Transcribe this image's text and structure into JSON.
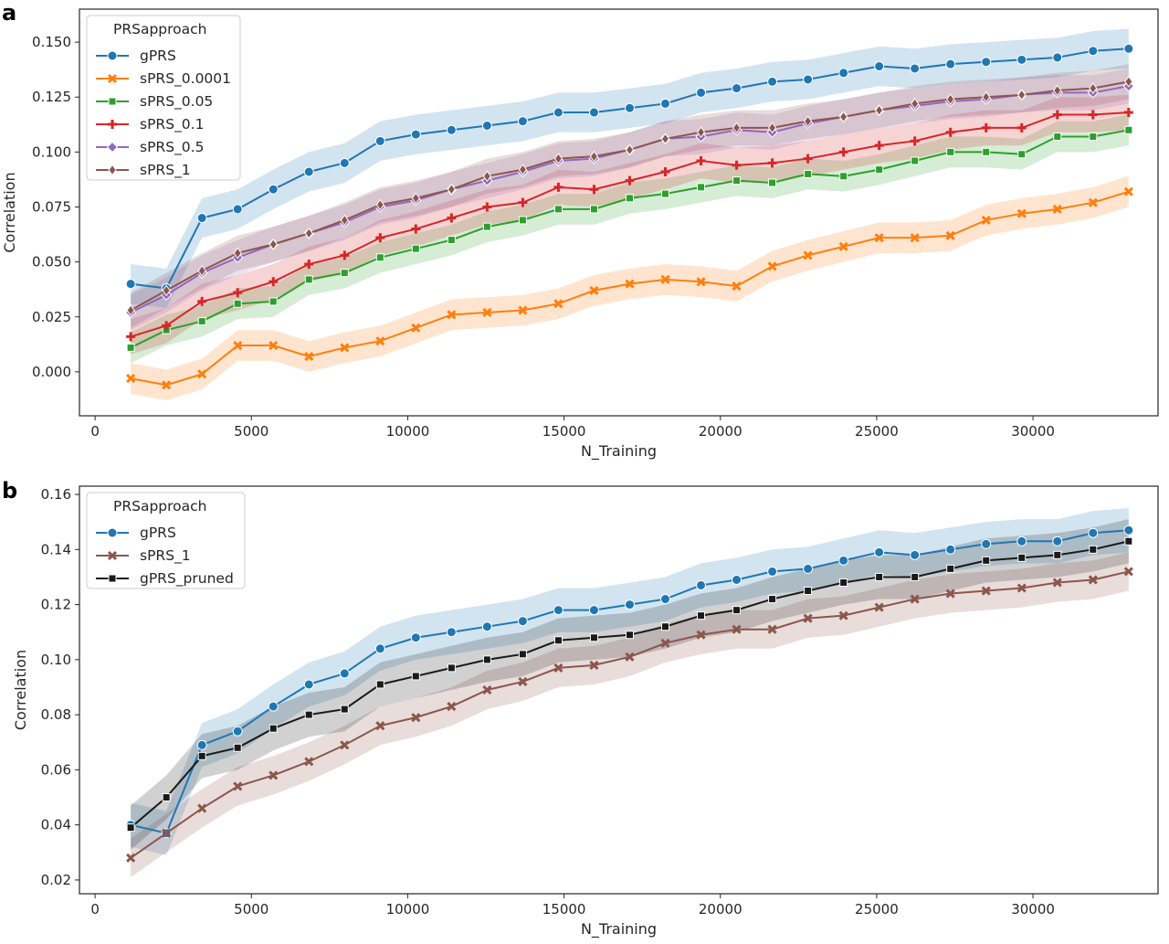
{
  "chart_data": [
    {
      "panel_label": "a",
      "type": "line",
      "xlabel": "N_Training",
      "ylabel": "Correlation",
      "xlim": [
        -500,
        34000
      ],
      "ylim": [
        -0.02,
        0.165
      ],
      "xticks": [
        0,
        5000,
        10000,
        15000,
        20000,
        25000,
        30000
      ],
      "xtick_labels": [
        "0",
        "5000",
        "10000",
        "15000",
        "20000",
        "25000",
        "30000"
      ],
      "yticks": [
        0.0,
        0.025,
        0.05,
        0.075,
        0.1,
        0.125,
        0.15
      ],
      "ytick_labels": [
        "0.000",
        "0.025",
        "0.050",
        "0.075",
        "0.100",
        "0.125",
        "0.150"
      ],
      "grid": false,
      "legend_title": "PRSapproach",
      "legend_position": "top-left",
      "x": [
        1140,
        2280,
        3420,
        4560,
        5700,
        6840,
        7980,
        9120,
        10260,
        11400,
        12540,
        13680,
        14820,
        15960,
        17100,
        18240,
        19380,
        20520,
        21660,
        22800,
        23940,
        25080,
        26220,
        27360,
        28500,
        29640,
        30780,
        31920,
        33060
      ],
      "series": [
        {
          "name": "gPRS",
          "color": "#1f77b4",
          "marker": "circle",
          "band": 0.009,
          "values": [
            0.04,
            0.038,
            0.07,
            0.074,
            0.083,
            0.091,
            0.095,
            0.105,
            0.108,
            0.11,
            0.112,
            0.114,
            0.118,
            0.118,
            0.12,
            0.122,
            0.127,
            0.129,
            0.132,
            0.133,
            0.136,
            0.139,
            0.138,
            0.14,
            0.141,
            0.142,
            0.143,
            0.146,
            0.147
          ]
        },
        {
          "name": "sPRS_0.0001",
          "color": "#ff7f0e",
          "marker": "x",
          "band": 0.007,
          "values": [
            -0.003,
            -0.006,
            -0.001,
            0.012,
            0.012,
            0.007,
            0.011,
            0.014,
            0.02,
            0.026,
            0.027,
            0.028,
            0.031,
            0.037,
            0.04,
            0.042,
            0.041,
            0.039,
            0.048,
            0.053,
            0.057,
            0.061,
            0.061,
            0.062,
            0.069,
            0.072,
            0.074,
            0.077,
            0.082
          ]
        },
        {
          "name": "sPRS_0.05",
          "color": "#2ca02c",
          "marker": "square",
          "band": 0.007,
          "values": [
            0.011,
            0.019,
            0.023,
            0.031,
            0.032,
            0.042,
            0.045,
            0.052,
            0.056,
            0.06,
            0.066,
            0.069,
            0.074,
            0.074,
            0.079,
            0.081,
            0.084,
            0.087,
            0.086,
            0.09,
            0.089,
            0.092,
            0.096,
            0.1,
            0.1,
            0.099,
            0.107,
            0.107,
            0.11
          ]
        },
        {
          "name": "sPRS_0.1",
          "color": "#d62728",
          "marker": "plus",
          "band": 0.008,
          "values": [
            0.016,
            0.021,
            0.032,
            0.036,
            0.041,
            0.049,
            0.053,
            0.061,
            0.065,
            0.07,
            0.075,
            0.077,
            0.084,
            0.083,
            0.087,
            0.091,
            0.096,
            0.094,
            0.095,
            0.097,
            0.1,
            0.103,
            0.105,
            0.109,
            0.111,
            0.111,
            0.117,
            0.117,
            0.118
          ]
        },
        {
          "name": "sPRS_0.5",
          "color": "#9467bd",
          "marker": "diamond",
          "band": 0.008,
          "values": [
            0.027,
            0.035,
            0.045,
            0.052,
            0.058,
            0.063,
            0.068,
            0.075,
            0.078,
            0.083,
            0.087,
            0.091,
            0.096,
            0.097,
            0.101,
            0.106,
            0.107,
            0.11,
            0.109,
            0.113,
            0.116,
            0.119,
            0.121,
            0.123,
            0.124,
            0.126,
            0.127,
            0.127,
            0.13
          ]
        },
        {
          "name": "sPRS_1",
          "color": "#8c564b",
          "marker": "thin_diamond",
          "band": 0.008,
          "values": [
            0.028,
            0.037,
            0.046,
            0.054,
            0.058,
            0.063,
            0.069,
            0.076,
            0.079,
            0.083,
            0.089,
            0.092,
            0.097,
            0.098,
            0.101,
            0.106,
            0.109,
            0.111,
            0.111,
            0.114,
            0.116,
            0.119,
            0.122,
            0.124,
            0.125,
            0.126,
            0.128,
            0.129,
            0.132
          ]
        }
      ]
    },
    {
      "panel_label": "b",
      "type": "line",
      "xlabel": "N_Training",
      "ylabel": "Correlation",
      "xlim": [
        -500,
        34000
      ],
      "ylim": [
        0.015,
        0.163
      ],
      "xticks": [
        0,
        5000,
        10000,
        15000,
        20000,
        25000,
        30000
      ],
      "xtick_labels": [
        "0",
        "5000",
        "10000",
        "15000",
        "20000",
        "25000",
        "30000"
      ],
      "yticks": [
        0.02,
        0.04,
        0.06,
        0.08,
        0.1,
        0.12,
        0.14,
        0.16
      ],
      "ytick_labels": [
        "0.02",
        "0.04",
        "0.06",
        "0.08",
        "0.10",
        "0.12",
        "0.14",
        "0.16"
      ],
      "grid": false,
      "legend_title": "PRSapproach",
      "legend_position": "top-left",
      "x": [
        1140,
        2280,
        3420,
        4560,
        5700,
        6840,
        7980,
        9120,
        10260,
        11400,
        12540,
        13680,
        14820,
        15960,
        17100,
        18240,
        19380,
        20520,
        21660,
        22800,
        23940,
        25080,
        26220,
        27360,
        28500,
        29640,
        30780,
        31920,
        33060
      ],
      "series": [
        {
          "name": "gPRS",
          "color": "#1f77b4",
          "marker": "circle",
          "band": 0.008,
          "values": [
            0.04,
            0.037,
            0.069,
            0.074,
            0.083,
            0.091,
            0.095,
            0.104,
            0.108,
            0.11,
            0.112,
            0.114,
            0.118,
            0.118,
            0.12,
            0.122,
            0.127,
            0.129,
            0.132,
            0.133,
            0.136,
            0.139,
            0.138,
            0.14,
            0.142,
            0.143,
            0.143,
            0.146,
            0.147
          ]
        },
        {
          "name": "sPRS_1",
          "color": "#8c564b",
          "marker": "x",
          "band": 0.007,
          "values": [
            0.028,
            0.037,
            0.046,
            0.054,
            0.058,
            0.063,
            0.069,
            0.076,
            0.079,
            0.083,
            0.089,
            0.092,
            0.097,
            0.098,
            0.101,
            0.106,
            0.109,
            0.111,
            0.111,
            0.115,
            0.116,
            0.119,
            0.122,
            0.124,
            0.125,
            0.126,
            0.128,
            0.129,
            0.132
          ]
        },
        {
          "name": "gPRS_pruned",
          "color": "#1a1a1a",
          "marker": "square",
          "band": 0.008,
          "values": [
            0.039,
            0.05,
            0.065,
            0.068,
            0.075,
            0.08,
            0.082,
            0.091,
            0.094,
            0.097,
            0.1,
            0.102,
            0.107,
            0.108,
            0.109,
            0.112,
            0.116,
            0.118,
            0.122,
            0.125,
            0.128,
            0.13,
            0.13,
            0.133,
            0.136,
            0.137,
            0.138,
            0.14,
            0.143
          ]
        }
      ]
    }
  ]
}
